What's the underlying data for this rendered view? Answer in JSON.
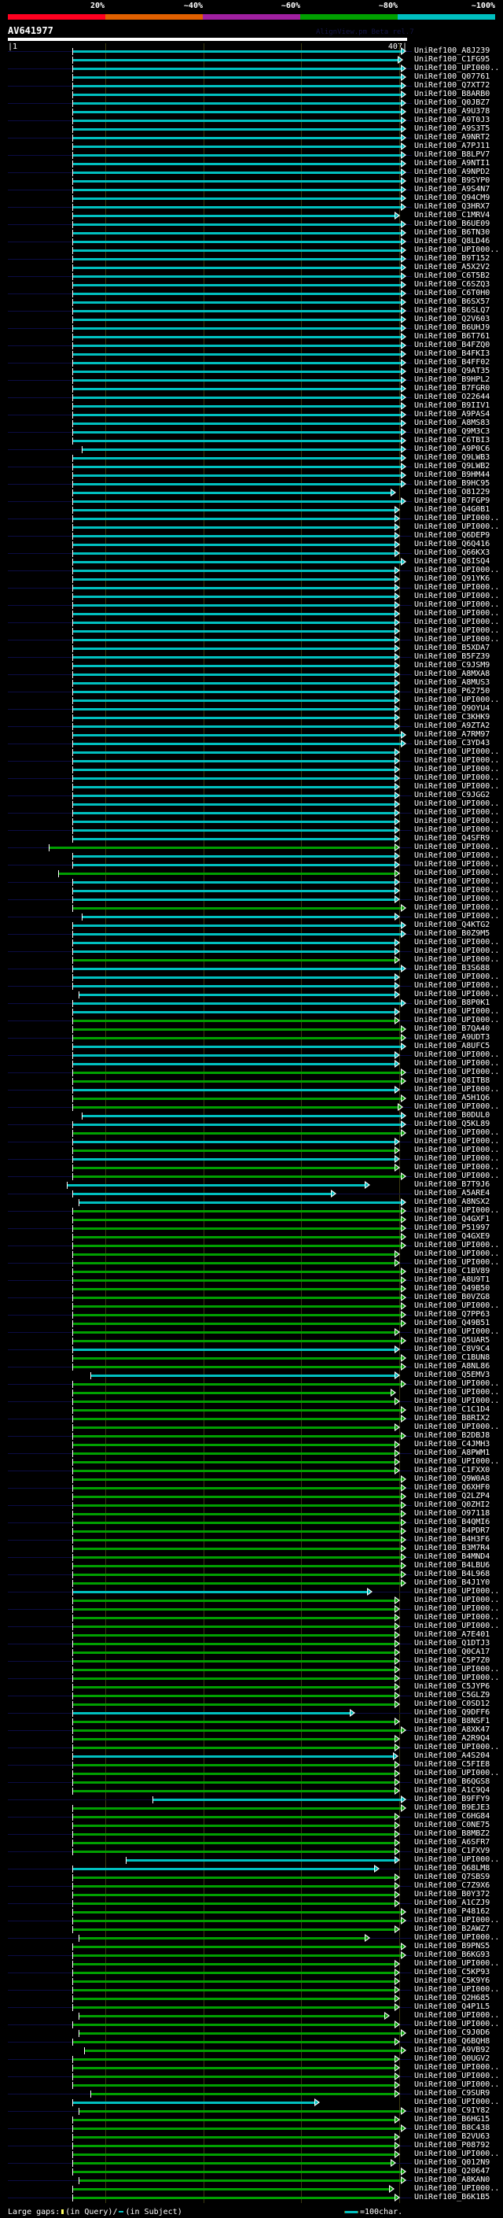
{
  "scale": {
    "labels": [
      "20%",
      "~40%",
      "~60%",
      "~80%",
      "~100%"
    ],
    "colors": [
      "#ff0020",
      "#e06000",
      "#a020a0",
      "#00a000",
      "#00c0c0"
    ]
  },
  "query": {
    "name": "AV641977",
    "start_label": "|1",
    "end_label": "407|",
    "length": 407
  },
  "brand": "AlignView.pm Beta rel.7",
  "hit_prefix": "UniRef100_",
  "hit_colors": {
    "c": "#00c0c0",
    "g": "#00a000"
  },
  "hits": [
    [
      "A8J239",
      "c",
      67,
      402
    ],
    [
      "C1FG95",
      "c",
      67,
      399
    ],
    [
      "UPI000..",
      "c",
      67,
      402
    ],
    [
      "Q07761",
      "c",
      67,
      402
    ],
    [
      "Q7XT72",
      "c",
      67,
      402
    ],
    [
      "B8ARB0",
      "c",
      67,
      402
    ],
    [
      "Q0JBZ7",
      "c",
      67,
      402
    ],
    [
      "A9U378",
      "c",
      67,
      402
    ],
    [
      "A9T0J3",
      "c",
      67,
      402
    ],
    [
      "A9S3T5",
      "c",
      67,
      402
    ],
    [
      "A9NRT2",
      "c",
      67,
      402
    ],
    [
      "A7PJ11",
      "c",
      67,
      402
    ],
    [
      "B8LPV7",
      "c",
      67,
      402
    ],
    [
      "A9NTI1",
      "c",
      67,
      402
    ],
    [
      "A9NPD2",
      "c",
      67,
      402
    ],
    [
      "B9SYP0",
      "c",
      67,
      402
    ],
    [
      "A9S4N7",
      "c",
      67,
      402
    ],
    [
      "Q94CM9",
      "c",
      67,
      402
    ],
    [
      "Q3HRX7",
      "c",
      67,
      402
    ],
    [
      "C1MRV4",
      "c",
      67,
      396
    ],
    [
      "B6UE09",
      "c",
      67,
      402
    ],
    [
      "B6TN30",
      "c",
      67,
      402
    ],
    [
      "Q8LD46",
      "c",
      67,
      402
    ],
    [
      "UPI000..",
      "c",
      67,
      402
    ],
    [
      "B9T152",
      "c",
      67,
      402
    ],
    [
      "A5X2V2",
      "c",
      67,
      402
    ],
    [
      "C6T5B2",
      "c",
      67,
      402
    ],
    [
      "C6SZQ3",
      "c",
      67,
      402
    ],
    [
      "C6T0H0",
      "c",
      67,
      402
    ],
    [
      "B6SX57",
      "c",
      67,
      402
    ],
    [
      "B6SLQ7",
      "c",
      67,
      402
    ],
    [
      "Q2V603",
      "c",
      67,
      402
    ],
    [
      "B6UHJ9",
      "c",
      67,
      402
    ],
    [
      "B6T761",
      "c",
      67,
      402
    ],
    [
      "B4FZQ0",
      "c",
      67,
      402
    ],
    [
      "B4FKI3",
      "c",
      67,
      402
    ],
    [
      "B4FF02",
      "c",
      67,
      402
    ],
    [
      "Q9AT35",
      "c",
      67,
      402
    ],
    [
      "B9HPL2",
      "c",
      67,
      402
    ],
    [
      "B7FGR0",
      "c",
      67,
      402
    ],
    [
      "O22644",
      "c",
      67,
      402
    ],
    [
      "B9IIV1",
      "c",
      67,
      402
    ],
    [
      "A9PAS4",
      "c",
      67,
      402
    ],
    [
      "A8MS83",
      "c",
      67,
      402
    ],
    [
      "Q9M3C3",
      "c",
      67,
      402
    ],
    [
      "C6TBI3",
      "c",
      67,
      402
    ],
    [
      "A9P0C6",
      "c",
      76,
      402
    ],
    [
      "Q9LWB3",
      "c",
      67,
      402
    ],
    [
      "Q9LWB2",
      "c",
      67,
      402
    ],
    [
      "B9HM44",
      "c",
      67,
      402
    ],
    [
      "B9HC95",
      "c",
      67,
      402
    ],
    [
      "O81229",
      "c",
      67,
      392
    ],
    [
      "B7FGP9",
      "c",
      67,
      402
    ],
    [
      "Q4G0B1",
      "c",
      67,
      396
    ],
    [
      "UPI000..",
      "c",
      67,
      396
    ],
    [
      "UPI000..",
      "c",
      67,
      396
    ],
    [
      "Q6DEP9",
      "c",
      67,
      396
    ],
    [
      "Q6Q416",
      "c",
      67,
      396
    ],
    [
      "Q66KX3",
      "c",
      67,
      396
    ],
    [
      "Q8ISQ4",
      "c",
      67,
      402
    ],
    [
      "UPI000..",
      "c",
      67,
      396
    ],
    [
      "Q91YK6",
      "c",
      67,
      396
    ],
    [
      "UPI000..",
      "c",
      67,
      396
    ],
    [
      "UPI000..",
      "c",
      67,
      396
    ],
    [
      "UPI000..",
      "c",
      67,
      396
    ],
    [
      "UPI000..",
      "c",
      67,
      396
    ],
    [
      "UPI000..",
      "c",
      67,
      396
    ],
    [
      "UPI000..",
      "c",
      67,
      396
    ],
    [
      "UPI000..",
      "c",
      67,
      396
    ],
    [
      "B5XDA7",
      "c",
      67,
      396
    ],
    [
      "B5FZ39",
      "c",
      67,
      396
    ],
    [
      "C9JSM9",
      "c",
      67,
      396
    ],
    [
      "A8MXA8",
      "c",
      67,
      396
    ],
    [
      "A8MUS3",
      "c",
      67,
      396
    ],
    [
      "P62750",
      "c",
      67,
      396
    ],
    [
      "UPI000..",
      "c",
      67,
      396
    ],
    [
      "Q9OYU4",
      "c",
      67,
      396
    ],
    [
      "C3KHK9",
      "c",
      67,
      396
    ],
    [
      "A9ZTA2",
      "c",
      67,
      396
    ],
    [
      "A7RM97",
      "c",
      67,
      402
    ],
    [
      "C3YD43",
      "c",
      67,
      402
    ],
    [
      "UPI000..",
      "c",
      67,
      396
    ],
    [
      "UPI000..",
      "c",
      67,
      396
    ],
    [
      "UPI000..",
      "c",
      67,
      396
    ],
    [
      "UPI000..",
      "c",
      67,
      396
    ],
    [
      "UPI000..",
      "c",
      67,
      396
    ],
    [
      "C9JGG2",
      "c",
      67,
      396
    ],
    [
      "UPI000..",
      "c",
      67,
      396
    ],
    [
      "UPI000..",
      "c",
      67,
      396
    ],
    [
      "UPI000..",
      "c",
      67,
      396
    ],
    [
      "UPI000..",
      "c",
      67,
      396
    ],
    [
      "Q4SFR9",
      "c",
      67,
      396
    ],
    [
      "UPI000..",
      "g",
      43,
      396
    ],
    [
      "UPI000..",
      "c",
      67,
      396
    ],
    [
      "UPI000..",
      "c",
      67,
      396
    ],
    [
      "UPI000..",
      "g",
      52,
      396
    ],
    [
      "UPI000..",
      "c",
      67,
      396
    ],
    [
      "UPI000..",
      "c",
      67,
      396
    ],
    [
      "UPI000..",
      "c",
      67,
      396
    ],
    [
      "UPI000..",
      "g",
      67,
      402
    ],
    [
      "UPI000..",
      "c",
      76,
      396
    ],
    [
      "Q4KTG2",
      "c",
      67,
      402
    ],
    [
      "B0Z9M5",
      "c",
      67,
      402
    ],
    [
      "UPI000..",
      "c",
      67,
      396
    ],
    [
      "UPI000..",
      "c",
      67,
      396
    ],
    [
      "UPI000..",
      "g",
      67,
      396
    ],
    [
      "B3S688",
      "c",
      67,
      402
    ],
    [
      "UPI000..",
      "c",
      67,
      396
    ],
    [
      "UPI000..",
      "c",
      67,
      396
    ],
    [
      "UPI000..",
      "c",
      73,
      396
    ],
    [
      "B8P0K1",
      "c",
      67,
      402
    ],
    [
      "UPI000..",
      "c",
      67,
      396
    ],
    [
      "UPI000..",
      "g",
      67,
      396
    ],
    [
      "B7QA40",
      "g",
      67,
      402
    ],
    [
      "A9UDT3",
      "g",
      67,
      402
    ],
    [
      "A8UFC5",
      "c",
      67,
      402
    ],
    [
      "UPI000..",
      "c",
      67,
      396
    ],
    [
      "UPI000..",
      "c",
      67,
      396
    ],
    [
      "UPI000..",
      "g",
      67,
      402
    ],
    [
      "Q8ITB8",
      "g",
      67,
      402
    ],
    [
      "UPI000..",
      "c",
      67,
      396
    ],
    [
      "A5H1Q6",
      "g",
      67,
      402
    ],
    [
      "UPI000..",
      "g",
      67,
      399
    ],
    [
      "B0DUL0",
      "c",
      76,
      402
    ],
    [
      "Q5KL89",
      "c",
      67,
      402
    ],
    [
      "UPI000..",
      "g",
      67,
      402
    ],
    [
      "UPI000..",
      "c",
      67,
      396
    ],
    [
      "UPI000..",
      "g",
      67,
      396
    ],
    [
      "UPI000..",
      "c",
      67,
      396
    ],
    [
      "UPI000..",
      "g",
      67,
      396
    ],
    [
      "UPI000..",
      "g",
      67,
      402
    ],
    [
      "B7T9J6",
      "c",
      61,
      365
    ],
    [
      "A5ARE4",
      "c",
      67,
      331
    ],
    [
      "A8NSX2",
      "c",
      73,
      402
    ],
    [
      "UPI000..",
      "g",
      67,
      402
    ],
    [
      "Q4GXF1",
      "g",
      67,
      402
    ],
    [
      "P51997",
      "g",
      67,
      402
    ],
    [
      "Q4GXE9",
      "g",
      67,
      402
    ],
    [
      "UPI000..",
      "g",
      67,
      402
    ],
    [
      "UPI000..",
      "g",
      67,
      396
    ],
    [
      "UPI000..",
      "g",
      67,
      396
    ],
    [
      "C1BV89",
      "g",
      67,
      402
    ],
    [
      "A8U9T1",
      "g",
      67,
      402
    ],
    [
      "Q49B50",
      "g",
      67,
      402
    ],
    [
      "B0VZG8",
      "g",
      67,
      402
    ],
    [
      "UPI000..",
      "g",
      67,
      402
    ],
    [
      "Q7PP63",
      "g",
      67,
      402
    ],
    [
      "Q49B51",
      "g",
      67,
      402
    ],
    [
      "UPI000..",
      "g",
      67,
      396
    ],
    [
      "Q5UAR5",
      "g",
      67,
      402
    ],
    [
      "C8V9C4",
      "c",
      67,
      396
    ],
    [
      "C1BUN8",
      "g",
      67,
      402
    ],
    [
      "A8NL86",
      "g",
      67,
      402
    ],
    [
      "Q5EMV3",
      "c",
      85,
      396
    ],
    [
      "UPI000..",
      "g",
      67,
      402
    ],
    [
      "UPI000..",
      "g",
      67,
      392
    ],
    [
      "UPI000..",
      "g",
      67,
      396
    ],
    [
      "C1C1D4",
      "g",
      67,
      402
    ],
    [
      "B8RIX2",
      "g",
      67,
      402
    ],
    [
      "UPI000..",
      "g",
      67,
      396
    ],
    [
      "B2DBJ8",
      "g",
      67,
      402
    ],
    [
      "C4JMH3",
      "g",
      67,
      396
    ],
    [
      "A8PWM1",
      "g",
      67,
      396
    ],
    [
      "UPI000..",
      "g",
      67,
      396
    ],
    [
      "C1FXX0",
      "g",
      67,
      396
    ],
    [
      "Q9W0A8",
      "g",
      67,
      402
    ],
    [
      "Q6XHF0",
      "g",
      67,
      402
    ],
    [
      "Q2LZP4",
      "g",
      67,
      402
    ],
    [
      "Q0ZHI2",
      "g",
      67,
      402
    ],
    [
      "O97118",
      "g",
      67,
      402
    ],
    [
      "B4QMI6",
      "g",
      67,
      402
    ],
    [
      "B4PDR7",
      "g",
      67,
      402
    ],
    [
      "B4H3F6",
      "g",
      67,
      402
    ],
    [
      "B3M7R4",
      "g",
      67,
      402
    ],
    [
      "B4MND4",
      "g",
      67,
      402
    ],
    [
      "B4LBU6",
      "g",
      67,
      402
    ],
    [
      "B4L968",
      "g",
      67,
      402
    ],
    [
      "B4J1Y0",
      "g",
      67,
      402
    ],
    [
      "UPI000..",
      "c",
      67,
      368
    ],
    [
      "UPI000..",
      "g",
      67,
      396
    ],
    [
      "UPI000..",
      "g",
      67,
      396
    ],
    [
      "UPI000..",
      "g",
      67,
      396
    ],
    [
      "UPI000..",
      "g",
      67,
      396
    ],
    [
      "A7E401",
      "g",
      67,
      396
    ],
    [
      "Q1DTJ3",
      "g",
      67,
      396
    ],
    [
      "Q0CA17",
      "g",
      67,
      396
    ],
    [
      "C5P7Z0",
      "g",
      67,
      396
    ],
    [
      "UPI000..",
      "g",
      67,
      396
    ],
    [
      "UPI000..",
      "g",
      67,
      396
    ],
    [
      "C5JYP6",
      "g",
      67,
      396
    ],
    [
      "C5GLZ9",
      "g",
      67,
      396
    ],
    [
      "C0SD12",
      "g",
      67,
      396
    ],
    [
      "Q9DFF6",
      "c",
      67,
      350
    ],
    [
      "B8NSF1",
      "g",
      67,
      396
    ],
    [
      "A8XK47",
      "g",
      67,
      402
    ],
    [
      "A2R9Q4",
      "g",
      67,
      396
    ],
    [
      "UPI000..",
      "g",
      67,
      396
    ],
    [
      "A4S204",
      "c",
      67,
      394
    ],
    [
      "C5FIE8",
      "g",
      67,
      396
    ],
    [
      "UPI000..",
      "g",
      67,
      396
    ],
    [
      "B6QGS8",
      "g",
      67,
      396
    ],
    [
      "A1C9Q4",
      "g",
      67,
      396
    ],
    [
      "B9FFY9",
      "c",
      148,
      402
    ],
    [
      "B9EJE3",
      "g",
      67,
      402
    ],
    [
      "C6HG84",
      "g",
      67,
      396
    ],
    [
      "C0NE75",
      "g",
      67,
      396
    ],
    [
      "B8MBZ2",
      "g",
      67,
      396
    ],
    [
      "A6SFR7",
      "g",
      67,
      396
    ],
    [
      "C1FXV9",
      "g",
      67,
      396
    ],
    [
      "UPI000..",
      "c",
      121,
      396
    ],
    [
      "Q68LM8",
      "c",
      67,
      375
    ],
    [
      "Q7SBS9",
      "g",
      67,
      396
    ],
    [
      "C7Z9X6",
      "g",
      67,
      396
    ],
    [
      "B0Y372",
      "g",
      67,
      396
    ],
    [
      "A1CZJ9",
      "g",
      67,
      396
    ],
    [
      "P48162",
      "g",
      67,
      402
    ],
    [
      "UPI000..",
      "g",
      67,
      402
    ],
    [
      "B2AWZ7",
      "g",
      67,
      396
    ],
    [
      "UPI000..",
      "g",
      73,
      365
    ],
    [
      "B9PNS5",
      "g",
      67,
      402
    ],
    [
      "B6KG93",
      "g",
      67,
      402
    ],
    [
      "UPI000..",
      "g",
      67,
      396
    ],
    [
      "C5KP93",
      "g",
      67,
      396
    ],
    [
      "C5K9Y6",
      "g",
      67,
      396
    ],
    [
      "UPI000..",
      "g",
      67,
      396
    ],
    [
      "Q2H685",
      "g",
      67,
      396
    ],
    [
      "Q4P1L5",
      "g",
      67,
      396
    ],
    [
      "UPI000..",
      "g",
      73,
      385
    ],
    [
      "UPI000..",
      "g",
      67,
      396
    ],
    [
      "C9J0D6",
      "g",
      73,
      402
    ],
    [
      "Q6BQH8",
      "g",
      67,
      396
    ],
    [
      "A9VB92",
      "g",
      79,
      402
    ],
    [
      "Q0UGV2",
      "g",
      67,
      396
    ],
    [
      "UPI000..",
      "g",
      67,
      396
    ],
    [
      "UPI000..",
      "g",
      67,
      396
    ],
    [
      "UPI000..",
      "g",
      67,
      396
    ],
    [
      "C9SUR9",
      "g",
      85,
      396
    ],
    [
      "UPI000..",
      "c",
      67,
      314
    ],
    [
      "C9IY82",
      "g",
      73,
      402
    ],
    [
      "B6HG15",
      "g",
      67,
      396
    ],
    [
      "B8C438",
      "g",
      67,
      402
    ],
    [
      "B2VU63",
      "g",
      67,
      396
    ],
    [
      "P08792",
      "g",
      67,
      396
    ],
    [
      "UPI000..",
      "g",
      67,
      396
    ],
    [
      "Q012N9",
      "g",
      67,
      392
    ],
    [
      "Q20647",
      "g",
      67,
      402
    ],
    [
      "A8KAN0",
      "g",
      73,
      402
    ],
    [
      "UPI000..",
      "g",
      67,
      390
    ],
    [
      "B6K1B5",
      "g",
      67,
      396
    ]
  ],
  "footer": {
    "large_gaps_label": "Large gaps:",
    "in_query": "(in Query)/",
    "in_subject": "(in Subject)",
    "scale_legend": "=100char."
  }
}
